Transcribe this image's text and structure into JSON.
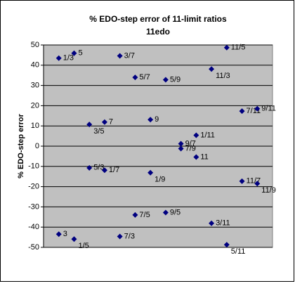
{
  "chart_data": {
    "type": "scatter",
    "title": "% EDO-step error of 11-limit ratios",
    "subtitle": "11edo",
    "y_label": "% EDO-step error",
    "color": "#000080",
    "plot_background": "#c0c0c0",
    "grid": true,
    "x": [
      1,
      1,
      2,
      2,
      3,
      3,
      4,
      4,
      5,
      5,
      6,
      6,
      7,
      7,
      8,
      8,
      9,
      9,
      10,
      10,
      11,
      11,
      12,
      12,
      13,
      13,
      14,
      14
    ],
    "values": [
      43.5,
      -43.5,
      45.9,
      -45.9,
      10.7,
      -10.7,
      11.9,
      -11.9,
      44.6,
      -44.6,
      34.0,
      -34.0,
      13.1,
      -13.1,
      32.8,
      -32.8,
      1.2,
      -1.2,
      5.4,
      -5.4,
      38.1,
      -38.1,
      48.7,
      -48.7,
      17.3,
      -17.3,
      18.5,
      -18.5
    ],
    "point_labels": [
      "1/3",
      "3",
      "5",
      "1/5",
      "3/5",
      "5/3",
      "7",
      "1/7",
      "3/7",
      "7/3",
      "5/7",
      "7/5",
      "9",
      "1/9",
      "5/9",
      "9/5",
      "9/7",
      "7/9",
      "1/11",
      "11",
      "11/3",
      "3/11",
      "11/5",
      "5/11",
      "7/11",
      "11/7",
      "9/11",
      "11/9"
    ],
    "xlim": [
      0,
      15
    ],
    "ylim": [
      -50,
      50
    ],
    "yticks": [
      -50,
      -40,
      -30,
      -20,
      -10,
      0,
      10,
      20,
      30,
      40,
      50
    ]
  }
}
